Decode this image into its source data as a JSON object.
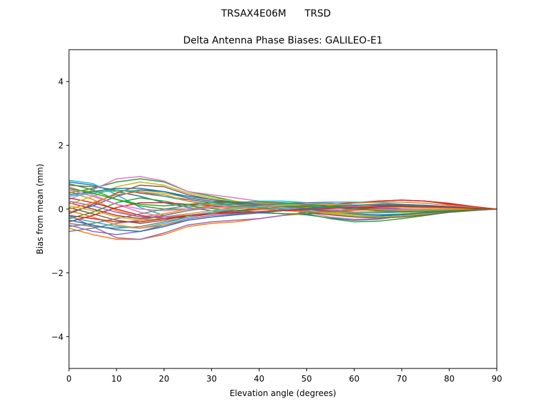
{
  "chart_data": {
    "type": "line",
    "suptitle": "TRSAX4E06M      TRSD",
    "title": "Delta Antenna Phase Biases: GALILEO-E1",
    "xlabel": "Elevation angle (degrees)",
    "ylabel": "Bias from mean (mm)",
    "xlim": [
      0,
      90
    ],
    "ylim": [
      -5,
      5
    ],
    "xticks": [
      0,
      10,
      20,
      30,
      40,
      50,
      60,
      70,
      80,
      90
    ],
    "xtick_labels": [
      "0",
      "10",
      "20",
      "30",
      "40",
      "50",
      "60",
      "70",
      "80",
      "90"
    ],
    "yticks": [
      -4,
      -2,
      0,
      2,
      4
    ],
    "ytick_labels": [
      "−4",
      "−2",
      "0",
      "2",
      "4"
    ],
    "grid": false,
    "legend": "none",
    "x": [
      0,
      5,
      10,
      15,
      20,
      25,
      30,
      35,
      40,
      45,
      50,
      55,
      60,
      65,
      70,
      75,
      80,
      85,
      90
    ],
    "colors": [
      "#1f77b4",
      "#ff7f0e",
      "#2ca02c",
      "#d62728",
      "#9467bd",
      "#8c564b",
      "#e377c2",
      "#7f7f7f",
      "#bcbd22",
      "#17becf"
    ],
    "series": [
      {
        "values": [
          0.85,
          0.75,
          0.55,
          0.4,
          0.2,
          0.05,
          -0.05,
          -0.1,
          -0.12,
          -0.14,
          -0.18,
          -0.28,
          -0.35,
          -0.32,
          -0.22,
          -0.1,
          0.0,
          0.0,
          0.0
        ]
      },
      {
        "values": [
          -0.6,
          -0.8,
          -0.95,
          -0.95,
          -0.8,
          -0.55,
          -0.45,
          -0.4,
          -0.3,
          -0.2,
          -0.15,
          -0.1,
          -0.05,
          0.0,
          0.05,
          0.05,
          0.05,
          0.03,
          0.0
        ]
      },
      {
        "values": [
          0.5,
          0.65,
          0.85,
          0.95,
          0.85,
          0.55,
          0.4,
          0.25,
          0.15,
          0.05,
          -0.15,
          -0.3,
          -0.4,
          -0.38,
          -0.3,
          -0.2,
          -0.1,
          -0.05,
          0.0
        ]
      },
      {
        "values": [
          0.2,
          0.0,
          -0.2,
          -0.3,
          -0.2,
          -0.05,
          0.05,
          0.1,
          0.1,
          0.08,
          0.05,
          0.1,
          0.18,
          0.25,
          0.28,
          0.25,
          0.15,
          0.05,
          0.0
        ]
      },
      {
        "values": [
          -0.2,
          -0.55,
          -0.9,
          -0.95,
          -0.75,
          -0.5,
          -0.4,
          -0.35,
          -0.3,
          -0.2,
          -0.1,
          -0.05,
          0.0,
          0.05,
          0.08,
          0.07,
          0.05,
          0.02,
          0.0
        ]
      },
      {
        "values": [
          0.75,
          0.7,
          0.6,
          0.5,
          0.4,
          0.3,
          0.2,
          0.15,
          0.1,
          0.05,
          0.0,
          -0.05,
          -0.1,
          -0.1,
          -0.08,
          -0.05,
          -0.03,
          -0.01,
          0.0
        ]
      },
      {
        "values": [
          0.3,
          0.6,
          0.95,
          1.02,
          0.88,
          0.55,
          0.45,
          0.35,
          0.25,
          0.1,
          -0.1,
          -0.25,
          -0.32,
          -0.3,
          -0.22,
          -0.12,
          -0.05,
          -0.02,
          0.0
        ]
      },
      {
        "values": [
          -0.45,
          -0.55,
          -0.6,
          -0.55,
          -0.4,
          -0.25,
          -0.15,
          -0.08,
          -0.02,
          0.02,
          0.05,
          0.05,
          0.05,
          0.05,
          0.05,
          0.04,
          0.03,
          0.01,
          0.0
        ]
      },
      {
        "values": [
          0.6,
          0.55,
          0.55,
          0.6,
          0.5,
          0.35,
          0.25,
          0.18,
          0.12,
          0.05,
          -0.05,
          -0.12,
          -0.18,
          -0.18,
          -0.15,
          -0.1,
          -0.05,
          -0.02,
          0.0
        ]
      },
      {
        "values": [
          0.9,
          0.8,
          0.45,
          0.05,
          -0.2,
          -0.05,
          0.1,
          0.2,
          0.25,
          0.25,
          0.2,
          0.12,
          0.05,
          -0.02,
          -0.05,
          -0.05,
          -0.03,
          -0.01,
          0.0
        ]
      },
      {
        "values": [
          -0.1,
          0.1,
          0.4,
          0.6,
          0.55,
          0.35,
          0.25,
          0.2,
          0.15,
          0.05,
          -0.05,
          -0.15,
          -0.22,
          -0.22,
          -0.18,
          -0.12,
          -0.06,
          -0.02,
          0.0
        ]
      },
      {
        "values": [
          0.55,
          0.3,
          -0.05,
          -0.25,
          -0.15,
          0.0,
          0.1,
          0.15,
          0.18,
          0.18,
          0.15,
          0.1,
          0.05,
          0.0,
          -0.02,
          -0.03,
          -0.02,
          -0.01,
          0.0
        ]
      },
      {
        "values": [
          -0.3,
          -0.1,
          0.2,
          0.35,
          0.25,
          0.1,
          0.02,
          -0.05,
          -0.1,
          -0.15,
          -0.15,
          -0.1,
          -0.02,
          0.05,
          0.1,
          0.1,
          0.07,
          0.03,
          0.0
        ]
      },
      {
        "values": [
          0.35,
          0.2,
          0.0,
          -0.2,
          -0.3,
          -0.25,
          -0.15,
          -0.05,
          0.02,
          0.05,
          0.1,
          0.15,
          0.2,
          0.25,
          0.28,
          0.25,
          0.18,
          0.08,
          0.0
        ]
      },
      {
        "values": [
          -0.5,
          -0.7,
          -0.8,
          -0.7,
          -0.5,
          -0.3,
          -0.2,
          -0.15,
          -0.1,
          -0.05,
          0.0,
          0.05,
          0.08,
          0.1,
          0.1,
          0.08,
          0.05,
          0.02,
          0.0
        ]
      },
      {
        "values": [
          0.05,
          -0.15,
          -0.35,
          -0.45,
          -0.35,
          -0.2,
          -0.1,
          -0.05,
          0.0,
          0.05,
          0.08,
          0.1,
          0.12,
          0.12,
          0.12,
          0.1,
          0.07,
          0.03,
          0.0
        ]
      },
      {
        "values": [
          0.7,
          0.45,
          0.15,
          -0.1,
          -0.25,
          -0.2,
          -0.1,
          0.0,
          0.08,
          0.12,
          0.12,
          0.08,
          0.02,
          -0.05,
          -0.08,
          -0.08,
          -0.05,
          -0.02,
          0.0
        ]
      },
      {
        "values": [
          -0.7,
          -0.6,
          -0.45,
          -0.35,
          -0.2,
          -0.05,
          0.05,
          0.1,
          0.15,
          0.15,
          0.12,
          0.08,
          0.05,
          0.02,
          0.0,
          -0.01,
          -0.01,
          0.0,
          0.0
        ]
      },
      {
        "values": [
          0.15,
          0.4,
          0.7,
          0.85,
          0.75,
          0.5,
          0.35,
          0.25,
          0.15,
          0.05,
          -0.05,
          -0.15,
          -0.22,
          -0.25,
          -0.22,
          -0.15,
          -0.08,
          -0.03,
          0.0
        ]
      },
      {
        "values": [
          -0.25,
          -0.4,
          -0.55,
          -0.6,
          -0.45,
          -0.25,
          -0.1,
          0.0,
          0.08,
          0.15,
          0.2,
          0.22,
          0.22,
          0.2,
          0.15,
          0.1,
          0.05,
          0.02,
          0.0
        ]
      },
      {
        "values": [
          0.45,
          0.55,
          0.65,
          0.65,
          0.55,
          0.4,
          0.3,
          0.22,
          0.15,
          0.08,
          0.0,
          -0.08,
          -0.15,
          -0.18,
          -0.17,
          -0.12,
          -0.07,
          -0.03,
          0.0
        ]
      },
      {
        "values": [
          -0.05,
          -0.25,
          -0.5,
          -0.6,
          -0.5,
          -0.35,
          -0.25,
          -0.18,
          -0.1,
          -0.02,
          0.05,
          0.12,
          0.18,
          0.22,
          0.22,
          0.18,
          0.12,
          0.05,
          0.0
        ]
      },
      {
        "values": [
          0.8,
          0.6,
          0.3,
          0.1,
          0.0,
          0.0,
          0.05,
          0.08,
          0.1,
          0.1,
          0.08,
          0.05,
          0.0,
          -0.05,
          -0.08,
          -0.08,
          -0.05,
          -0.02,
          0.0
        ]
      },
      {
        "values": [
          -0.4,
          -0.2,
          0.05,
          0.2,
          0.2,
          0.15,
          0.1,
          0.05,
          0.0,
          -0.05,
          -0.08,
          -0.05,
          0.0,
          0.05,
          0.08,
          0.08,
          0.06,
          0.03,
          0.0
        ]
      },
      {
        "values": [
          0.25,
          0.1,
          -0.1,
          -0.25,
          -0.25,
          -0.15,
          -0.05,
          0.05,
          0.12,
          0.18,
          0.2,
          0.18,
          0.12,
          0.05,
          0.0,
          -0.03,
          -0.03,
          -0.01,
          0.0
        ]
      },
      {
        "values": [
          -0.15,
          0.15,
          0.5,
          0.75,
          0.7,
          0.45,
          0.3,
          0.18,
          0.08,
          -0.02,
          -0.1,
          -0.18,
          -0.25,
          -0.28,
          -0.25,
          -0.18,
          -0.1,
          -0.04,
          0.0
        ]
      },
      {
        "values": [
          0.6,
          0.4,
          0.15,
          0.0,
          -0.05,
          0.0,
          0.05,
          0.05,
          0.05,
          0.02,
          0.0,
          -0.02,
          -0.03,
          -0.03,
          -0.02,
          -0.02,
          -0.01,
          0.0,
          0.0
        ]
      },
      {
        "values": [
          -0.55,
          -0.45,
          -0.3,
          -0.15,
          0.0,
          0.1,
          0.15,
          0.15,
          0.12,
          0.08,
          0.02,
          -0.05,
          -0.1,
          -0.12,
          -0.1,
          -0.07,
          -0.04,
          -0.01,
          0.0
        ]
      },
      {
        "values": [
          0.1,
          -0.05,
          -0.25,
          -0.35,
          -0.3,
          -0.15,
          -0.05,
          0.02,
          0.08,
          0.12,
          0.15,
          0.15,
          0.12,
          0.08,
          0.05,
          0.03,
          0.02,
          0.01,
          0.0
        ]
      },
      {
        "values": [
          0.4,
          0.5,
          0.6,
          0.55,
          0.4,
          0.25,
          0.15,
          0.1,
          0.05,
          0.0,
          -0.05,
          -0.1,
          -0.12,
          -0.12,
          -0.1,
          -0.07,
          -0.04,
          -0.02,
          0.0
        ]
      },
      {
        "values": [
          -0.35,
          -0.5,
          -0.65,
          -0.7,
          -0.55,
          -0.35,
          -0.25,
          -0.18,
          -0.12,
          -0.05,
          0.02,
          0.08,
          0.12,
          0.15,
          0.15,
          0.12,
          0.08,
          0.03,
          0.0
        ]
      },
      {
        "values": [
          0.0,
          0.2,
          0.45,
          0.55,
          0.45,
          0.25,
          0.12,
          0.05,
          0.0,
          -0.05,
          -0.08,
          -0.1,
          -0.1,
          -0.08,
          -0.05,
          -0.03,
          -0.02,
          -0.01,
          0.0
        ]
      },
      {
        "values": [
          0.65,
          0.5,
          0.3,
          0.15,
          0.1,
          0.15,
          0.2,
          0.22,
          0.22,
          0.2,
          0.15,
          0.08,
          0.0,
          -0.05,
          -0.08,
          -0.08,
          -0.05,
          -0.02,
          0.0
        ]
      },
      {
        "values": [
          -0.2,
          -0.3,
          -0.4,
          -0.4,
          -0.3,
          -0.2,
          -0.15,
          -0.12,
          -0.08,
          -0.05,
          -0.02,
          0.02,
          0.05,
          0.08,
          0.08,
          0.07,
          0.05,
          0.02,
          0.0
        ]
      }
    ]
  }
}
